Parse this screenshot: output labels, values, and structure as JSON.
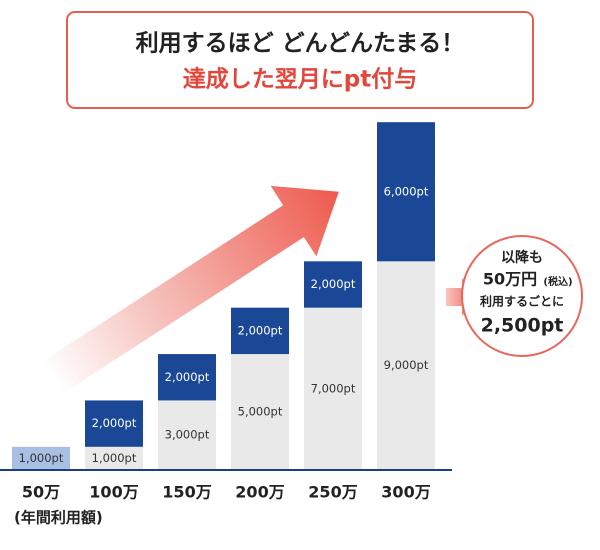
{
  "chart_data": {
    "type": "stacked-bar",
    "title": "利用するほど どんどんたまる！",
    "subtitle": "達成した翌月にpt付与",
    "categories": [
      "50万",
      "100万",
      "150万",
      "200万",
      "250万",
      "300万"
    ],
    "x_label": "(年間利用額)",
    "series": [
      {
        "color": "#e9e9e9",
        "colors": [
          "#a9c0e4",
          "#e9e9e9",
          "#e9e9e9",
          "#e9e9e9",
          "#e9e9e9",
          "#e9e9e9"
        ],
        "values": [
          1000,
          1000,
          3000,
          5000,
          7000,
          9000
        ],
        "value_labels": [
          "1,000pt",
          "1,000pt",
          "3,000pt",
          "5,000pt",
          "7,000pt",
          "9,000pt"
        ]
      },
      {
        "color": "#1a4896",
        "values": [
          null,
          2000,
          2000,
          2000,
          2000,
          6000
        ],
        "value_labels": [
          null,
          "2,000pt",
          "2,000pt",
          "2,000pt",
          "2,000pt",
          "6,000pt"
        ]
      }
    ],
    "ylim": [
      0,
      16000
    ],
    "annotation": [
      "以降も",
      "50万円",
      "(税込)",
      "利用するごとに",
      "2,500pt"
    ]
  }
}
